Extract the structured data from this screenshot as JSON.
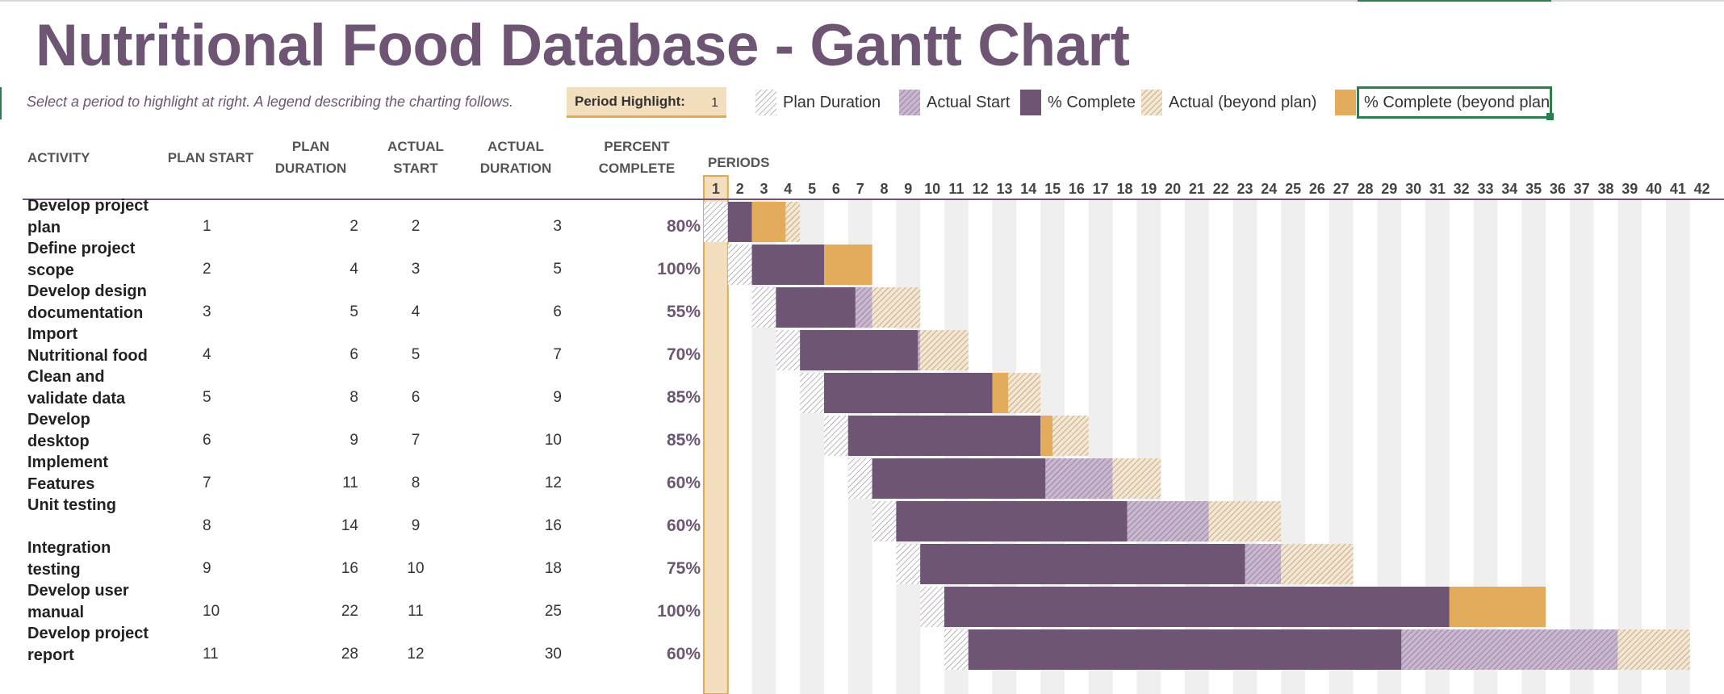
{
  "title": "Nutritional Food Database - Gantt Chart",
  "subtitle": "Select a period to highlight at right.  A legend describing the charting follows.",
  "period_highlight": {
    "label": "Period Highlight:",
    "value": "1"
  },
  "legend": [
    {
      "label": "Plan Duration",
      "icon": "hatch-lavender-icon"
    },
    {
      "label": "Actual Start",
      "icon": "hatch-purple-icon"
    },
    {
      "label": "% Complete",
      "icon": "solid-purple-icon"
    },
    {
      "label": "Actual (beyond plan)",
      "icon": "hatch-tan-icon"
    },
    {
      "label": "% Complete (beyond plan",
      "icon": "solid-orange-icon"
    }
  ],
  "headers": {
    "activity": "ACTIVITY",
    "plan_start": "PLAN START",
    "plan_duration_1": "PLAN",
    "plan_duration_2": "DURATION",
    "actual_start_1": "ACTUAL",
    "actual_start_2": "START",
    "actual_duration_1": "ACTUAL",
    "actual_duration_2": "DURATION",
    "percent_1": "PERCENT",
    "percent_2": "COMPLETE",
    "periods": "PERIODS"
  },
  "periods": [
    "1",
    "2",
    "3",
    "4",
    "5",
    "6",
    "7",
    "8",
    "9",
    "10",
    "11",
    "12",
    "13",
    "14",
    "15",
    "16",
    "17",
    "18",
    "19",
    "20",
    "21",
    "22",
    "23",
    "24",
    "25",
    "26",
    "27",
    "28",
    "29",
    "30",
    "31",
    "32",
    "33",
    "34",
    "35",
    "36",
    "37",
    "38",
    "39",
    "40",
    "41",
    "42"
  ],
  "tasks": [
    {
      "line1": "Develop project",
      "line2": "plan",
      "plan_start": "1",
      "plan_duration": "2",
      "actual_start": "2",
      "actual_duration": "3",
      "percent": "80%",
      "ps": 1,
      "pd": 2,
      "as": 2,
      "ad": 3,
      "pc": 0.8
    },
    {
      "line1": "Define project",
      "line2": "scope",
      "plan_start": "2",
      "plan_duration": "4",
      "actual_start": "3",
      "actual_duration": "5",
      "percent": "100%",
      "ps": 2,
      "pd": 4,
      "as": 3,
      "ad": 5,
      "pc": 1.0
    },
    {
      "line1": "Develop design",
      "line2": "documentation",
      "plan_start": "3",
      "plan_duration": "5",
      "actual_start": "4",
      "actual_duration": "6",
      "percent": "55%",
      "ps": 3,
      "pd": 5,
      "as": 4,
      "ad": 6,
      "pc": 0.55
    },
    {
      "line1": "Import",
      "line2": "Nutritional food",
      "plan_start": "4",
      "plan_duration": "6",
      "actual_start": "5",
      "actual_duration": "7",
      "percent": "70%",
      "ps": 4,
      "pd": 6,
      "as": 5,
      "ad": 7,
      "pc": 0.7
    },
    {
      "line1": "Clean and",
      "line2": "validate data",
      "plan_start": "5",
      "plan_duration": "8",
      "actual_start": "6",
      "actual_duration": "9",
      "percent": "85%",
      "ps": 5,
      "pd": 8,
      "as": 6,
      "ad": 9,
      "pc": 0.85
    },
    {
      "line1": "Develop",
      "line2": "desktop",
      "plan_start": "6",
      "plan_duration": "9",
      "actual_start": "7",
      "actual_duration": "10",
      "percent": "85%",
      "ps": 6,
      "pd": 9,
      "as": 7,
      "ad": 10,
      "pc": 0.85
    },
    {
      "line1": "Implement",
      "line2": "Features",
      "plan_start": "7",
      "plan_duration": "11",
      "actual_start": "8",
      "actual_duration": "12",
      "percent": "60%",
      "ps": 7,
      "pd": 11,
      "as": 8,
      "ad": 12,
      "pc": 0.6
    },
    {
      "line1": "",
      "line2": "Unit testing",
      "plan_start": "8",
      "plan_duration": "14",
      "actual_start": "9",
      "actual_duration": "16",
      "percent": "60%",
      "ps": 8,
      "pd": 14,
      "as": 9,
      "ad": 16,
      "pc": 0.6
    },
    {
      "line1": "Integration",
      "line2": "testing",
      "plan_start": "9",
      "plan_duration": "16",
      "actual_start": "10",
      "actual_duration": "18",
      "percent": "75%",
      "ps": 9,
      "pd": 16,
      "as": 10,
      "ad": 18,
      "pc": 0.75
    },
    {
      "line1": " Develop user",
      "line2": "manual",
      "plan_start": "10",
      "plan_duration": "22",
      "actual_start": "11",
      "actual_duration": "25",
      "percent": "100%",
      "ps": 10,
      "pd": 22,
      "as": 11,
      "ad": 25,
      "pc": 1.0
    },
    {
      "line1": "Develop project",
      "line2": "report",
      "plan_start": "11",
      "plan_duration": "28",
      "actual_start": "12",
      "actual_duration": "30",
      "percent": "60%",
      "ps": 11,
      "pd": 28,
      "as": 12,
      "ad": 30,
      "pc": 0.6
    }
  ],
  "colors": {
    "title": "#6d5573",
    "complete": "#6d5573",
    "beyond_complete": "#e2ac5c",
    "highlight": "#f3dfbd",
    "stripe": "#efefef"
  }
}
